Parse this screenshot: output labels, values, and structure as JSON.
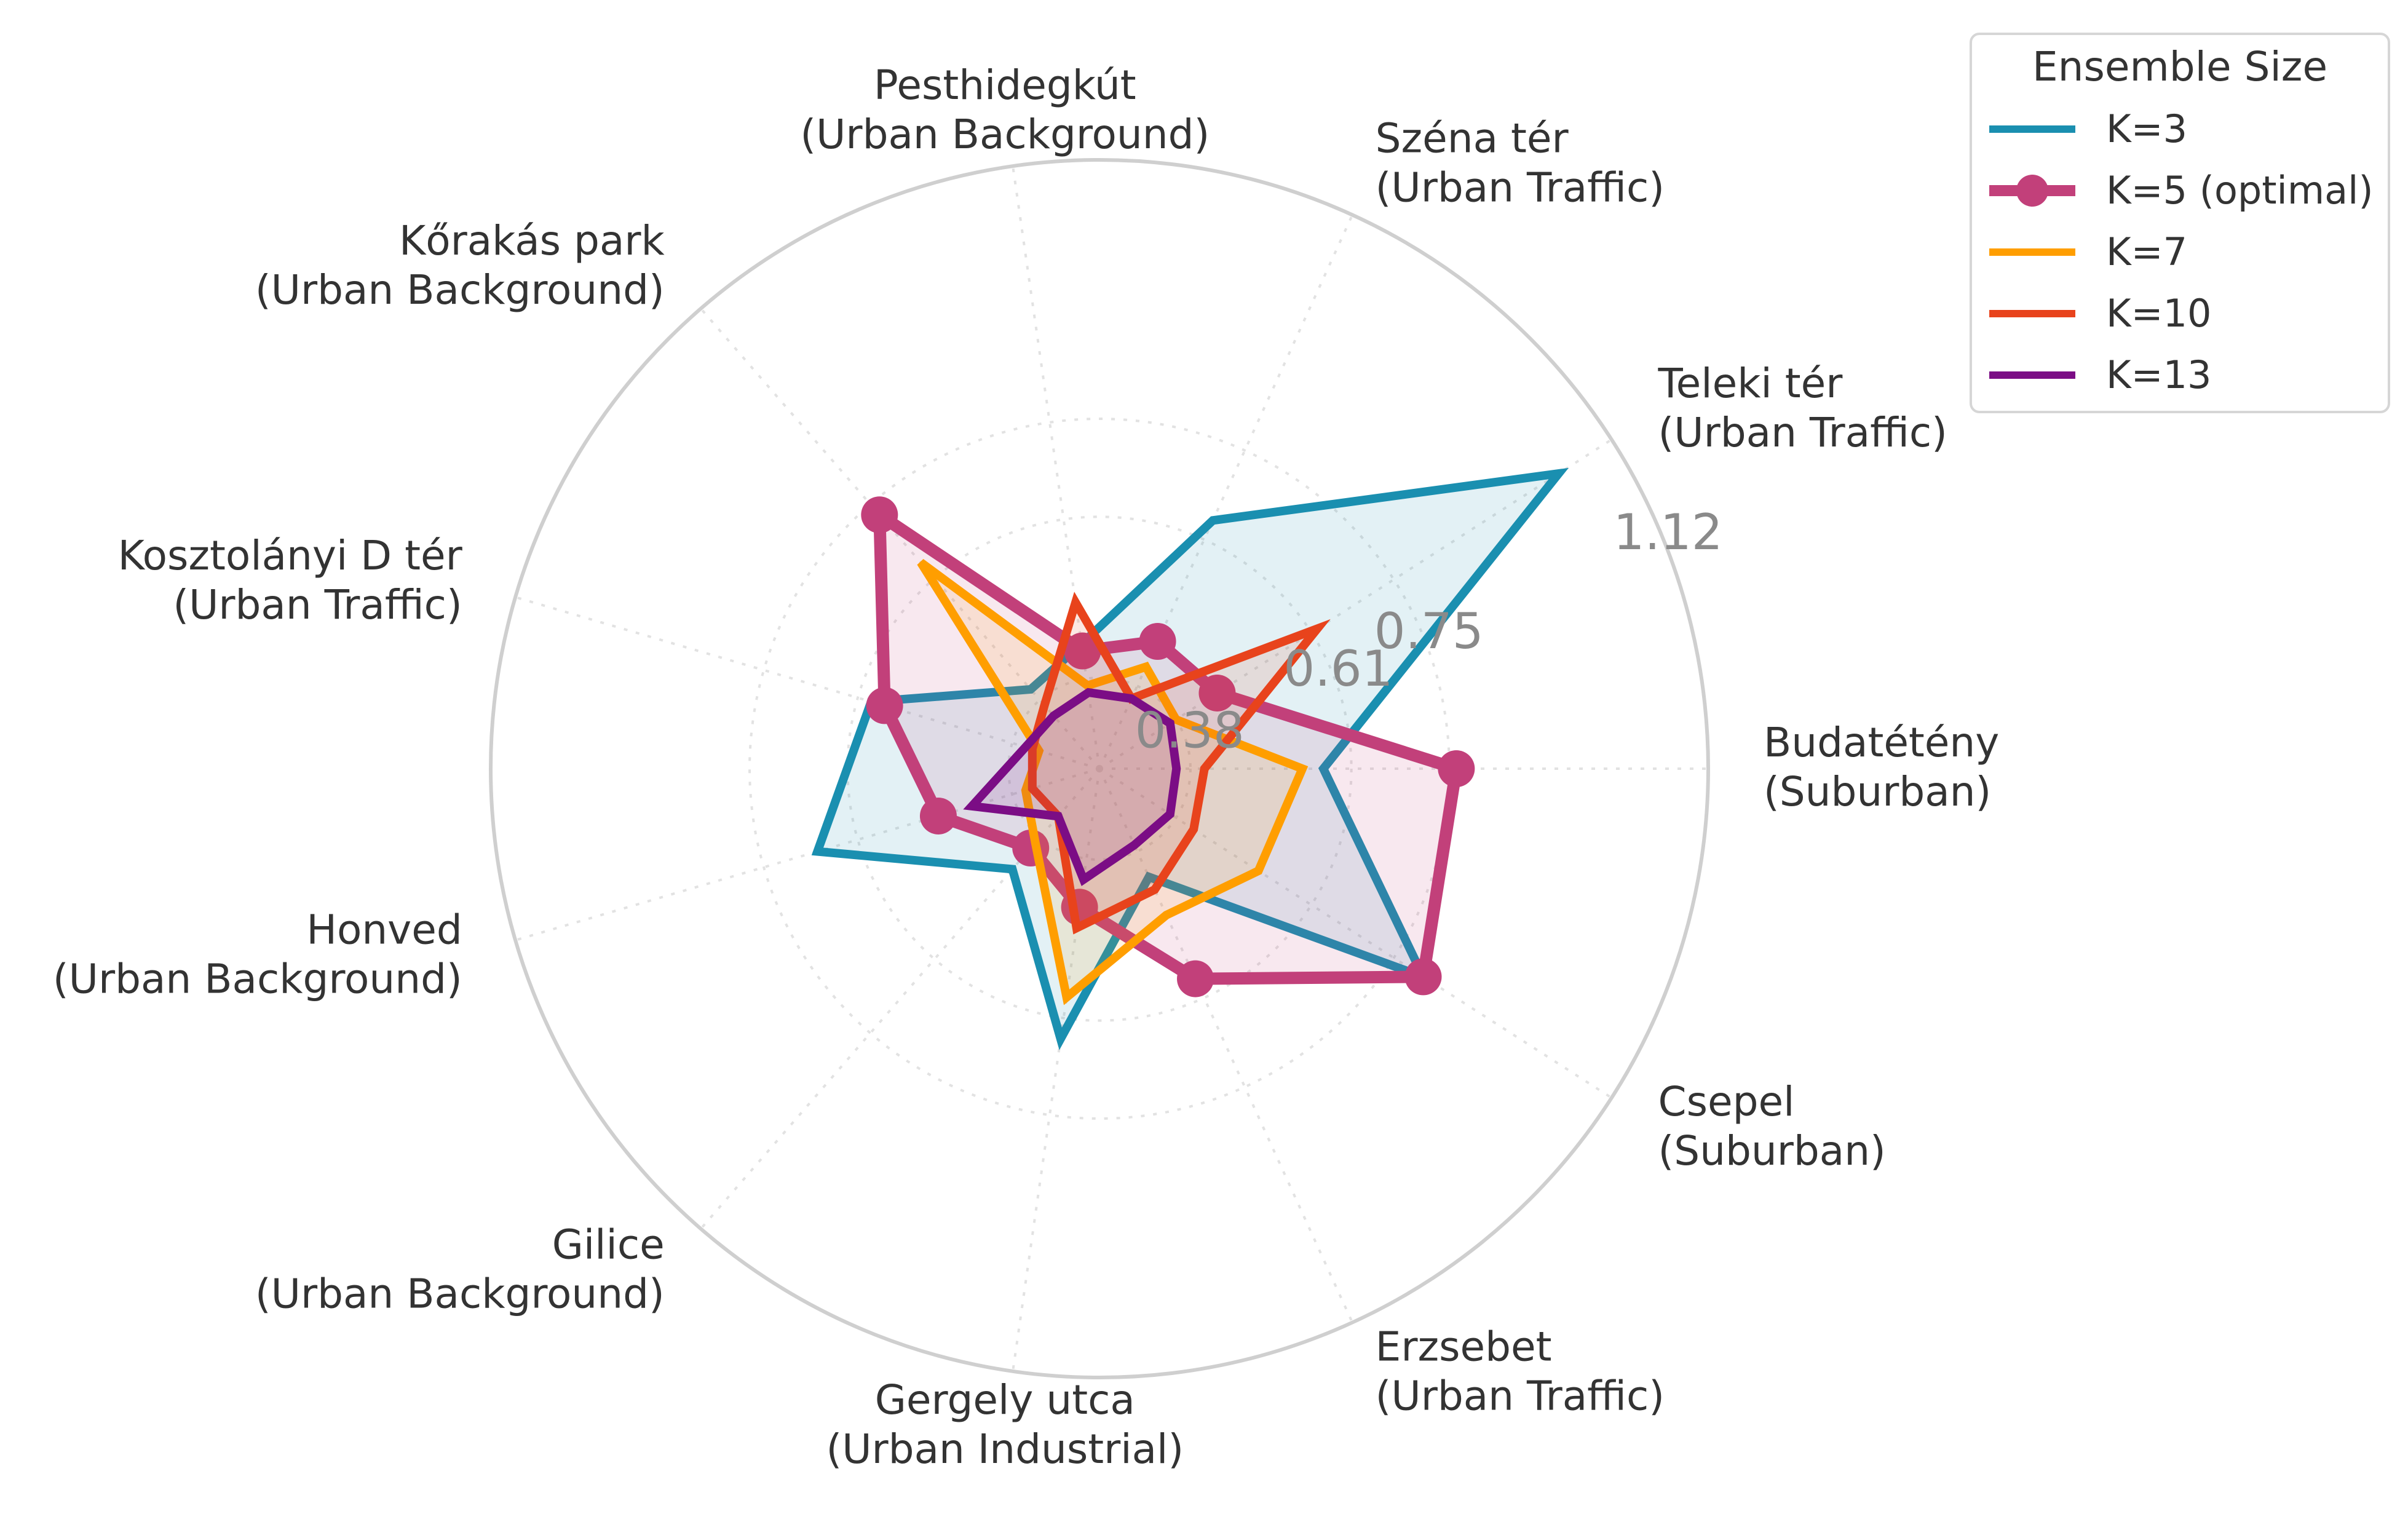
{
  "chart_data": {
    "type": "radar",
    "title": "",
    "categories": [
      {
        "name": "Budatétény",
        "type": "(Suburban)"
      },
      {
        "name": "Csepel",
        "type": "(Suburban)"
      },
      {
        "name": "Erzsebet",
        "type": "(Urban Traffic)"
      },
      {
        "name": "Gergely utca",
        "type": "(Urban Industrial)"
      },
      {
        "name": "Gilice",
        "type": "(Urban Background)"
      },
      {
        "name": "Honved",
        "type": "(Urban Background)"
      },
      {
        "name": "Kosztolányi D tér",
        "type": "(Urban Traffic)"
      },
      {
        "name": "Kőrakás park",
        "type": "(Urban Background)"
      },
      {
        "name": "Pesthidegkút",
        "type": "(Urban Background)"
      },
      {
        "name": "Széna tér",
        "type": "(Urban Traffic)"
      },
      {
        "name": "Teleki tér",
        "type": "(Urban Traffic)"
      }
    ],
    "rlim": [
      0.25,
      1.12
    ],
    "rticks": [
      {
        "value": 0.38,
        "label": "0.38"
      },
      {
        "value": 0.61,
        "label": "0.61"
      },
      {
        "value": 0.75,
        "label": "0.75"
      },
      {
        "value": 1.12,
        "label": "1.12"
      }
    ],
    "legend": {
      "title": "Ensemble Size",
      "position": "top-right"
    },
    "series": [
      {
        "name": "K=3",
        "color": "#1a8fb0",
        "markers": false,
        "values": [
          0.57,
          0.8,
          0.42,
          0.64,
          0.44,
          0.67,
          0.59,
          0.4,
          0.43,
          0.64,
          1.03
        ]
      },
      {
        "name": "K=5 (optimal)",
        "color": "#c2407a",
        "markers": true,
        "values": [
          0.76,
          0.8,
          0.58,
          0.45,
          0.4,
          0.49,
          0.57,
          0.73,
          0.42,
          0.45,
          0.45
        ]
      },
      {
        "name": "K=7",
        "color": "#ff9e00",
        "markers": false,
        "values": [
          0.54,
          0.52,
          0.48,
          0.58,
          0.39,
          0.36,
          0.34,
          0.64,
          0.37,
          0.41,
          0.38
        ]
      },
      {
        "name": "K=10",
        "color": "#e8431c",
        "markers": false,
        "values": [
          0.4,
          0.41,
          0.44,
          0.48,
          0.34,
          0.35,
          0.35,
          0.37,
          0.49,
          0.36,
          0.62
        ]
      },
      {
        "name": "K=13",
        "color": "#7b0d85",
        "markers": false,
        "values": [
          0.36,
          0.37,
          0.37,
          0.41,
          0.34,
          0.44,
          0.36,
          0.35,
          0.36,
          0.36,
          0.37
        ]
      }
    ]
  }
}
